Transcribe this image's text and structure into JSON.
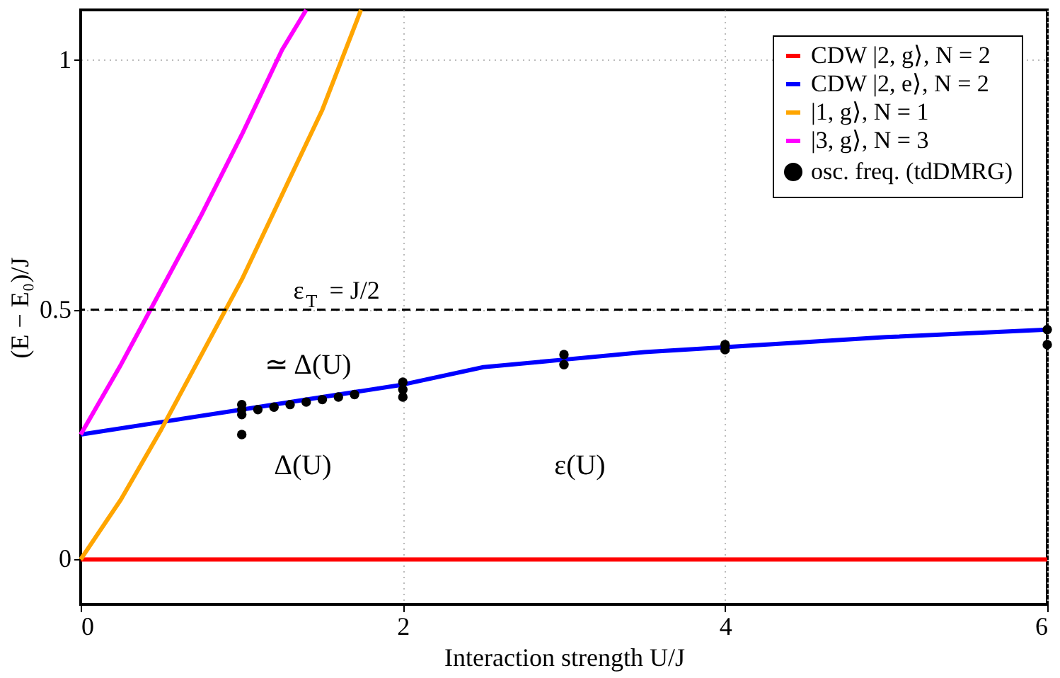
{
  "chart_data": {
    "type": "line",
    "xlabel": "Interaction strength U/J",
    "ylabel": "(E − E₀)/J",
    "xlim": [
      0,
      6
    ],
    "ylim": [
      -0.09,
      1.1
    ],
    "xticks": [
      0,
      2,
      4,
      6
    ],
    "yticks": [
      0,
      0.5,
      1
    ],
    "grid": true,
    "legend": "top right",
    "series": [
      {
        "name": "CDW |2, g⟩, N = 2",
        "color": "#ff0000",
        "x": [
          0,
          6
        ],
        "values": [
          0,
          0
        ]
      },
      {
        "name": "CDW |2, e⟩, N = 2",
        "color": "#0000ff",
        "x": [
          0,
          0.5,
          1,
          1.5,
          2,
          2.5,
          3,
          3.5,
          4,
          5,
          6
        ],
        "values": [
          0.25,
          0.275,
          0.3,
          0.325,
          0.35,
          0.385,
          0.4,
          0.415,
          0.425,
          0.445,
          0.46
        ]
      },
      {
        "name": "|1, g⟩, N = 1",
        "color": "#ffa500",
        "x": [
          0,
          0.25,
          0.5,
          0.75,
          1,
          1.25,
          1.5,
          1.74
        ],
        "values": [
          0,
          0.12,
          0.26,
          0.41,
          0.56,
          0.73,
          0.9,
          1.1
        ]
      },
      {
        "name": "|3, g⟩, N = 3",
        "color": "#ff00ff",
        "x": [
          0,
          0.25,
          0.5,
          0.75,
          1,
          1.25,
          1.4
        ],
        "values": [
          0.25,
          0.39,
          0.54,
          0.69,
          0.85,
          1.02,
          1.1
        ]
      },
      {
        "name": "osc. freq. (tdDMRG)",
        "color": "#000000",
        "type": "scatter",
        "marker": "circle",
        "x": [
          1,
          1,
          1,
          1,
          1.1,
          1.2,
          1.3,
          1.4,
          1.5,
          1.6,
          1.7,
          2,
          2,
          2,
          3,
          3,
          4,
          4,
          6,
          6
        ],
        "values": [
          0.25,
          0.29,
          0.3,
          0.31,
          0.3,
          0.305,
          0.31,
          0.315,
          0.32,
          0.325,
          0.33,
          0.325,
          0.34,
          0.355,
          0.39,
          0.41,
          0.42,
          0.43,
          0.43,
          0.46
        ]
      }
    ],
    "ref_lines": [
      {
        "axis": "y",
        "value": 0.5,
        "label": "ε$_{T}$ = J/2",
        "color": "#000000",
        "line_style": "dashed"
      }
    ],
    "annotations": [
      "≃ Δ(U)",
      "Δ(U)",
      "ε(U)"
    ]
  }
}
